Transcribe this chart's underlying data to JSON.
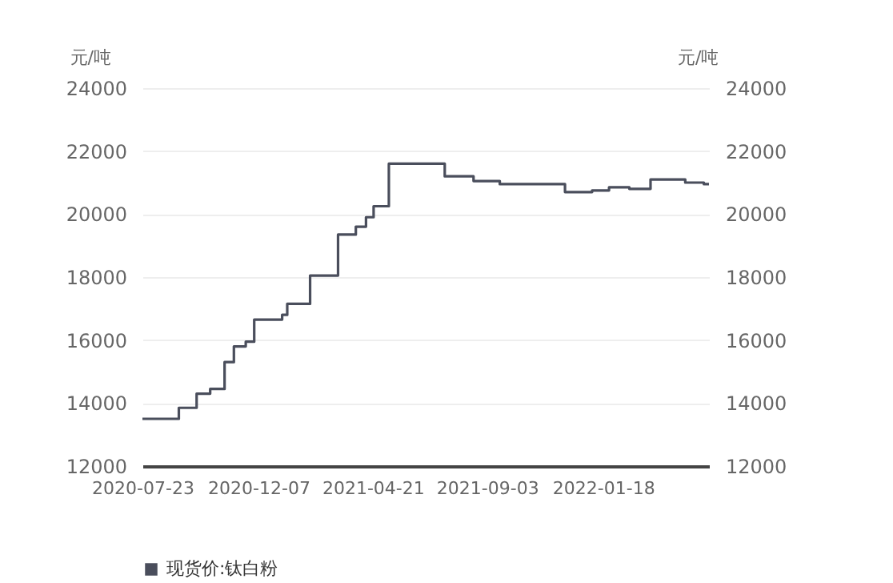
{
  "chart_data": {
    "type": "step",
    "ylabel": "元/吨",
    "y2label": "元/吨",
    "xlim": [
      "2020-07-23",
      "2022-05-23"
    ],
    "xticks": [
      {
        "value": "2020-07-23",
        "label": "2020-07-23"
      },
      {
        "value": "2020-12-07",
        "label": "2020-12-07"
      },
      {
        "value": "2021-04-21",
        "label": "2021-04-21"
      },
      {
        "value": "2021-09-03",
        "label": "2021-09-03"
      },
      {
        "value": "2022-01-18",
        "label": "2022-01-18"
      }
    ],
    "ylim": [
      12000,
      24000
    ],
    "yticks": [
      12000,
      14000,
      16000,
      18000,
      20000,
      22000,
      24000
    ],
    "y2lim": [
      12000,
      24000
    ],
    "y2ticks": [
      12000,
      14000,
      16000,
      18000,
      20000,
      22000,
      24000
    ],
    "grid": "y",
    "legend": "bottom left",
    "line_style": "solid",
    "marker": "none",
    "series": [
      {
        "name": "现货价:钛白粉",
        "color": "#4a4e5c",
        "x": [
          "2020-07-23",
          "2020-09-04",
          "2020-09-25",
          "2020-10-11",
          "2020-10-28",
          "2020-11-08",
          "2020-11-22",
          "2020-12-02",
          "2021-01-04",
          "2021-01-10",
          "2021-02-06",
          "2021-03-11",
          "2021-04-01",
          "2021-04-13",
          "2021-04-22",
          "2021-05-10",
          "2021-07-15",
          "2021-08-18",
          "2021-09-18",
          "2021-12-04",
          "2022-01-05",
          "2022-01-25",
          "2022-02-18",
          "2022-03-15",
          "2022-04-25",
          "2022-05-17",
          "2022-05-23"
        ],
        "values": [
          13500,
          13850,
          14300,
          14450,
          15300,
          15800,
          15950,
          16650,
          16800,
          17150,
          18050,
          19350,
          19600,
          19900,
          20250,
          21600,
          21200,
          21050,
          20950,
          20700,
          20750,
          20850,
          20800,
          21100,
          21000,
          20950,
          20950
        ]
      }
    ]
  }
}
